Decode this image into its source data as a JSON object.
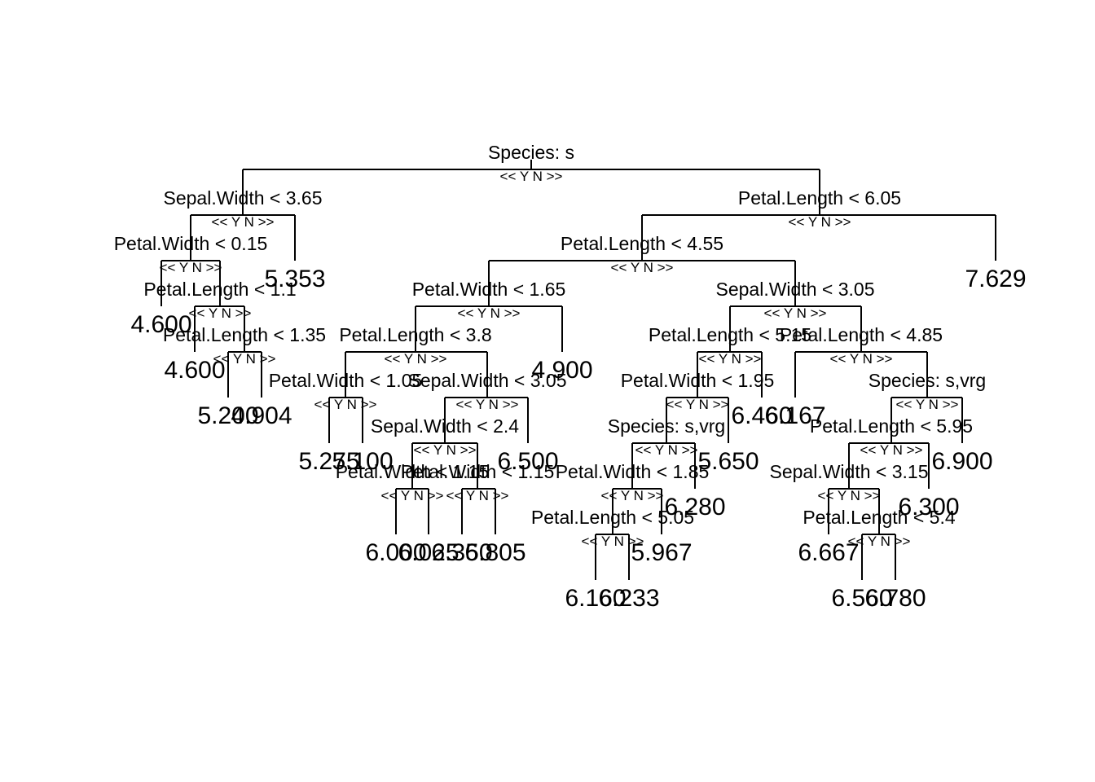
{
  "tree": {
    "yn_label": "<< Y N >>",
    "splits": [
      {
        "id": "n1",
        "label": "Species: s"
      },
      {
        "id": "n2",
        "label": "Sepal.Width < 3.65"
      },
      {
        "id": "n3",
        "label": "Petal.Width < 0.15"
      },
      {
        "id": "n4",
        "label": "Petal.Length < 1.1"
      },
      {
        "id": "n5",
        "label": "Petal.Length < 1.35"
      },
      {
        "id": "n6",
        "label": "Petal.Length < 6.05"
      },
      {
        "id": "n7",
        "label": "Petal.Length < 4.55"
      },
      {
        "id": "n8",
        "label": "Petal.Width < 1.65"
      },
      {
        "id": "n9",
        "label": "Petal.Length < 3.8"
      },
      {
        "id": "n10",
        "label": "Petal.Width < 1.05"
      },
      {
        "id": "n11",
        "label": "Sepal.Width < 3.05"
      },
      {
        "id": "n12",
        "label": "Sepal.Width < 2.4"
      },
      {
        "id": "n13",
        "label": "Petal.Width < 1.15"
      },
      {
        "id": "n14",
        "label": "Petal.Width < 1.15"
      },
      {
        "id": "n15",
        "label": "Sepal.Width < 3.05"
      },
      {
        "id": "n16",
        "label": "Petal.Length < 5.15"
      },
      {
        "id": "n17",
        "label": "Petal.Width < 1.95"
      },
      {
        "id": "n18",
        "label": "Species: s,vrg"
      },
      {
        "id": "n19",
        "label": "Petal.Width < 1.85"
      },
      {
        "id": "n20",
        "label": "Petal.Length < 5.05"
      },
      {
        "id": "n21",
        "label": "Petal.Length < 4.85"
      },
      {
        "id": "n22",
        "label": "Species: s,vrg"
      },
      {
        "id": "n23",
        "label": "Petal.Length < 5.95"
      },
      {
        "id": "n24",
        "label": "Sepal.Width < 3.15"
      },
      {
        "id": "n25",
        "label": "Petal.Length < 5.4"
      }
    ],
    "leaves": [
      {
        "id": "L1",
        "value": "4.600"
      },
      {
        "id": "L2",
        "value": "4.600"
      },
      {
        "id": "L3",
        "value": "5.200"
      },
      {
        "id": "L4",
        "value": "4.904"
      },
      {
        "id": "L5",
        "value": "5.353"
      },
      {
        "id": "L6",
        "value": "5.275"
      },
      {
        "id": "L7",
        "value": "5.100"
      },
      {
        "id": "L8",
        "value": "6.000"
      },
      {
        "id": "L9",
        "value": "6.025"
      },
      {
        "id": "L10",
        "value": "6.350"
      },
      {
        "id": "L11",
        "value": "6.805"
      },
      {
        "id": "L12",
        "value": "6.500"
      },
      {
        "id": "L13",
        "value": "4.900"
      },
      {
        "id": "L14",
        "value": "6.160"
      },
      {
        "id": "L15",
        "value": "6.233"
      },
      {
        "id": "L16",
        "value": "5.967"
      },
      {
        "id": "L17",
        "value": "6.280"
      },
      {
        "id": "L18",
        "value": "5.650"
      },
      {
        "id": "L19",
        "value": "6.460"
      },
      {
        "id": "L20",
        "value": "6.167"
      },
      {
        "id": "L21",
        "value": "6.560"
      },
      {
        "id": "L22",
        "value": "6.780"
      },
      {
        "id": "L23",
        "value": "6.667"
      },
      {
        "id": "L24",
        "value": "6.300"
      },
      {
        "id": "L25",
        "value": "6.900"
      },
      {
        "id": "L26",
        "value": "7.629"
      }
    ]
  }
}
